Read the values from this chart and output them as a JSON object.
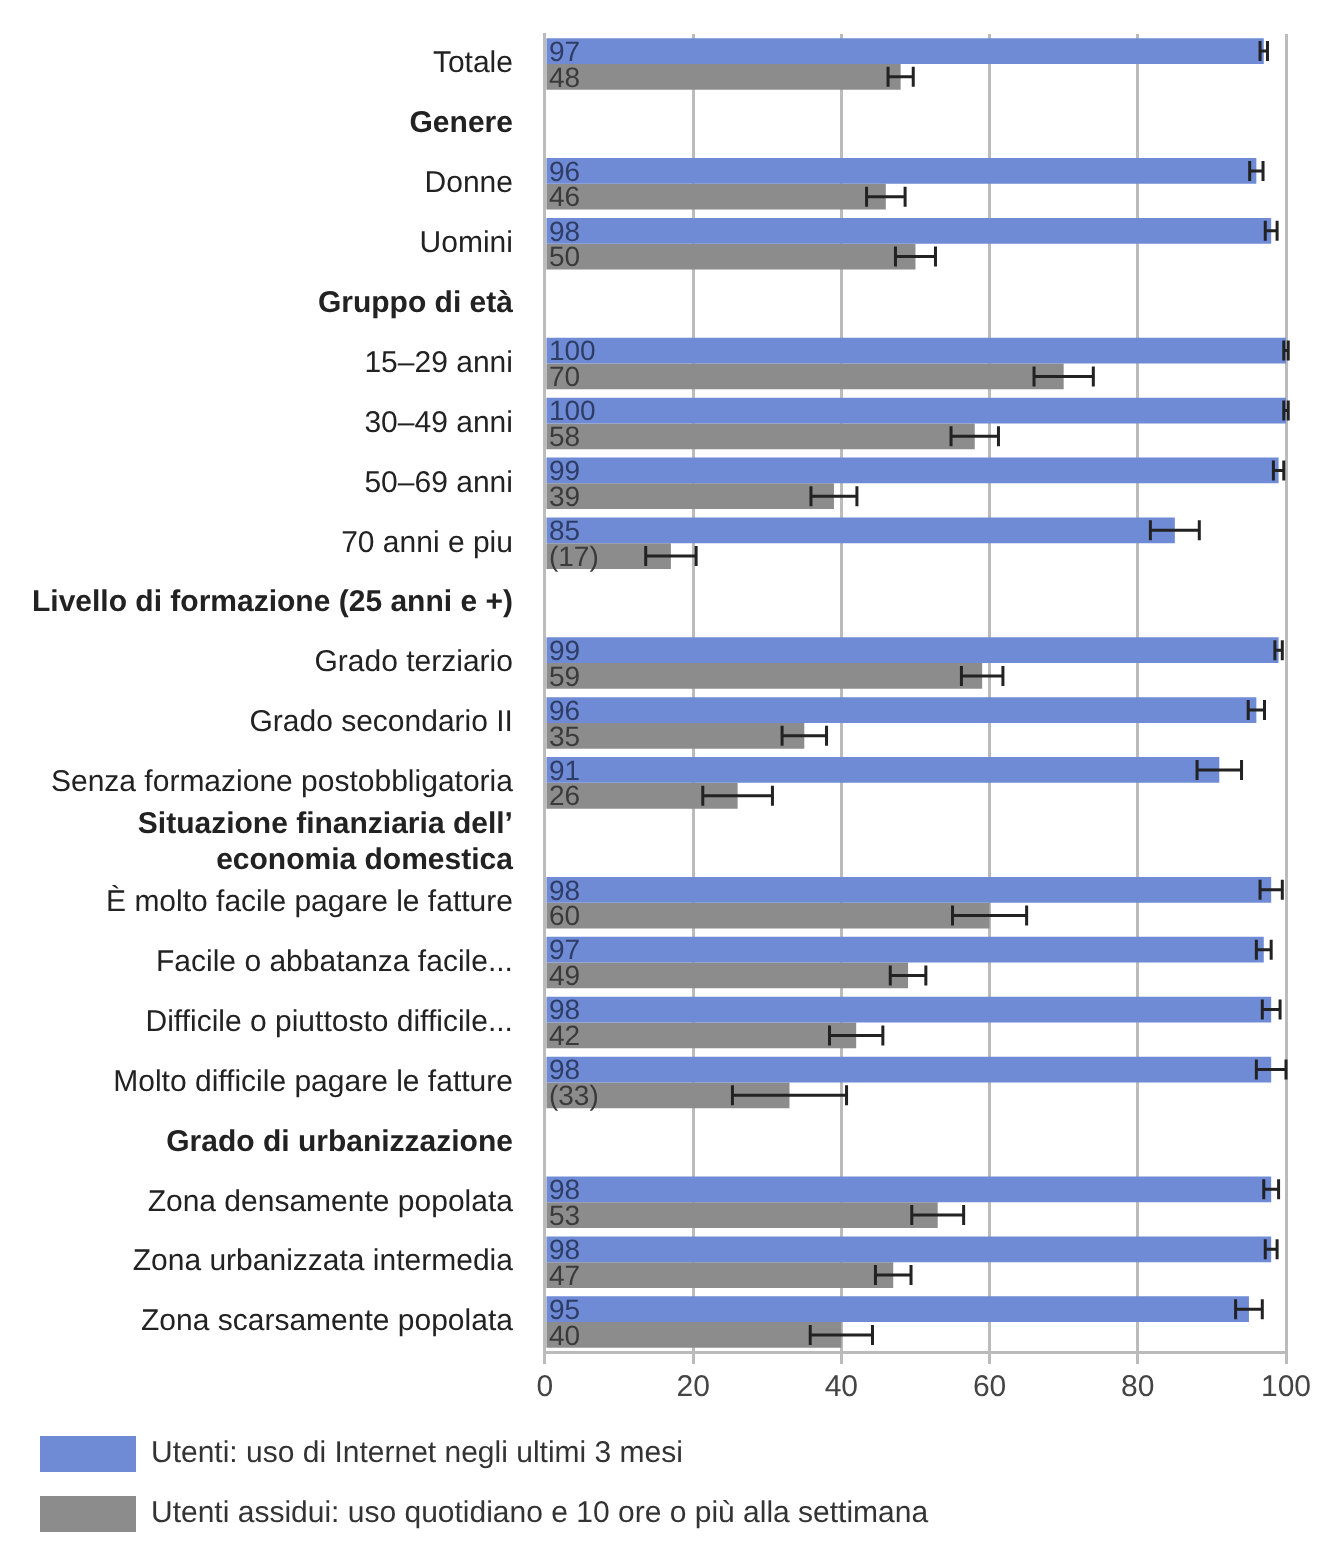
{
  "chart_data": {
    "type": "bar",
    "orientation": "horizontal",
    "categories": [
      "Totale",
      "Genere",
      "Donne",
      "Uomini",
      "Gruppo di età",
      "15–29 anni",
      "30–49 anni",
      "50–69 anni",
      "70 anni e piu",
      "Livello di formazione (25 anni e +)",
      "Grado terziario",
      "Grado secondario II",
      "Senza formazione postobbligatoria",
      "Situazione finanziaria dell’ economia domestica",
      "È molto facile pagare le fatture",
      "Facile o abbatanza facile...",
      "Difficile o piuttosto difficile...",
      "Molto difficile pagare le fatture",
      "Grado di urbanizzazione",
      "Zona densamente popolata",
      "Zona urbanizzata intermedia",
      "Zona scarsamente popolata"
    ],
    "series": [
      {
        "name": "Utenti: uso di Internet negli ultimi 3 mesi",
        "color": "#6f8bd6",
        "values": [
          97,
          null,
          96,
          98,
          null,
          100,
          100,
          99,
          85,
          null,
          99,
          96,
          91,
          null,
          98,
          97,
          98,
          98,
          null,
          98,
          98,
          95
        ],
        "errors": [
          0.5,
          null,
          0.9,
          0.8,
          null,
          0.3,
          0.3,
          0.7,
          3.3,
          null,
          0.5,
          1.1,
          3,
          null,
          1.5,
          1,
          1.2,
          2,
          null,
          1,
          0.8,
          1.8
        ],
        "value_labels": [
          "97",
          null,
          "96",
          "98",
          null,
          "100",
          "100",
          "99",
          "85",
          null,
          "99",
          "96",
          "91",
          null,
          "98",
          "97",
          "98",
          "98",
          null,
          "98",
          "98",
          "95"
        ]
      },
      {
        "name": "Utenti assidui: uso quotidiano e 10 ore o più alla settimana",
        "color": "#8c8c8c",
        "values": [
          48,
          null,
          46,
          50,
          null,
          70,
          58,
          39,
          17,
          null,
          59,
          35,
          26,
          null,
          60,
          49,
          42,
          33,
          null,
          53,
          47,
          40
        ],
        "errors": [
          1.7,
          null,
          2.6,
          2.7,
          null,
          4,
          3.2,
          3.1,
          3.4,
          null,
          2.8,
          3,
          4.7,
          null,
          5,
          2.4,
          3.6,
          7.7,
          null,
          3.5,
          2.4,
          4.2
        ],
        "value_labels": [
          "48",
          null,
          "46",
          "50",
          null,
          "70",
          "58",
          "39",
          "(17)",
          null,
          "59",
          "35",
          "26",
          null,
          "60",
          "49",
          "42",
          "(33)",
          null,
          "53",
          "47",
          "40"
        ]
      }
    ],
    "xlim": [
      0,
      100
    ],
    "xticks": [
      0,
      20,
      40,
      60,
      80,
      100
    ],
    "grid": "x",
    "legend": "bottom left"
  }
}
